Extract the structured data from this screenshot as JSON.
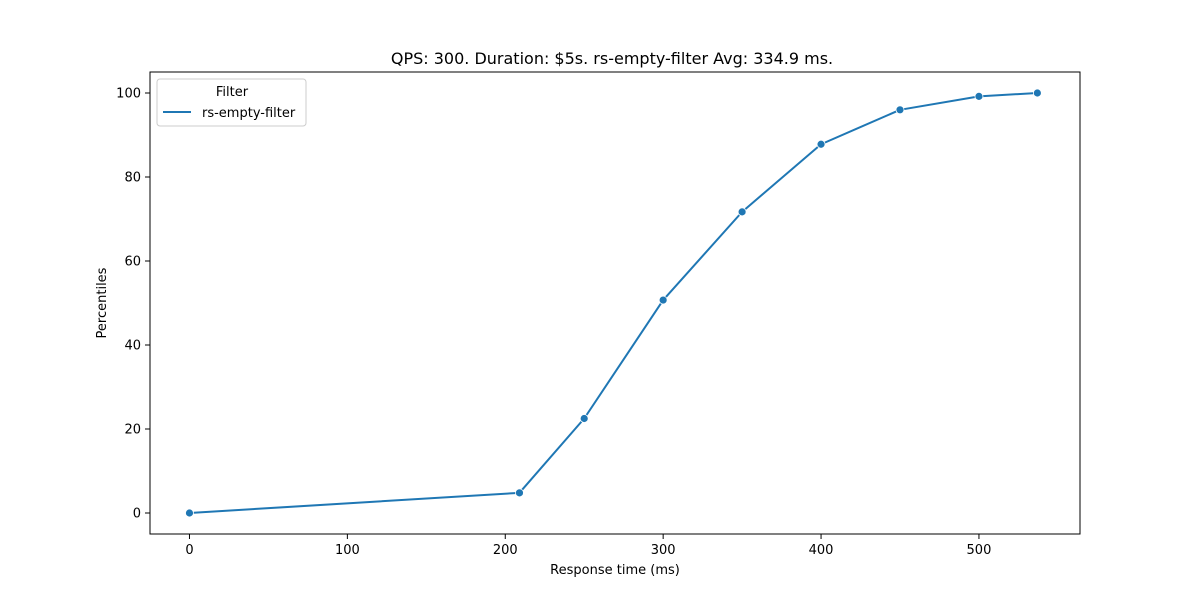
{
  "chart_data": {
    "type": "line",
    "title": "QPS: 300. Duration: $5s. rs-empty-filter Avg: 334.9 ms.",
    "xlabel": "Response time (ms)",
    "ylabel": "Percentiles",
    "xlim": [
      -25,
      564
    ],
    "ylim": [
      -5,
      105
    ],
    "xticks": [
      0,
      100,
      200,
      300,
      400,
      500
    ],
    "yticks": [
      0,
      20,
      40,
      60,
      80,
      100
    ],
    "grid": false,
    "legend": {
      "title": "Filter",
      "placement": "top-left"
    },
    "series": [
      {
        "name": "rs-empty-filter",
        "color": "#1f77b4",
        "marker": "circle",
        "x": [
          0,
          209,
          250,
          300,
          350,
          400,
          450,
          500,
          537
        ],
        "y": [
          0,
          4.8,
          22.5,
          50.7,
          71.7,
          87.8,
          96.0,
          99.2,
          100.0
        ]
      }
    ]
  }
}
